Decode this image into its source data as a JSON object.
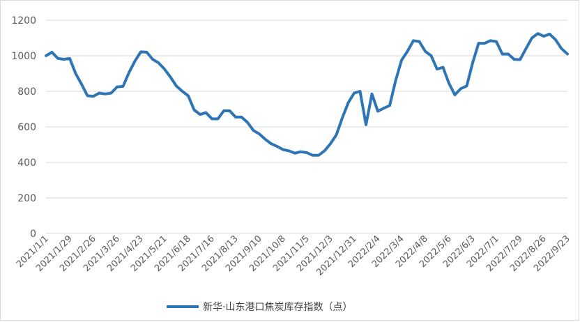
{
  "chart_data": {
    "type": "line",
    "title": "",
    "xlabel": "",
    "ylabel": "",
    "ylim": [
      0,
      1200
    ],
    "y_ticks": [
      0,
      200,
      400,
      600,
      800,
      1000,
      1200
    ],
    "grid": "horizontal",
    "legend_position": "bottom",
    "x_tick_labels": [
      "2021/1/1",
      "2021/1/29",
      "2021/2/26",
      "2021/3/26",
      "2021/4/23",
      "2021/5/21",
      "2021/6/18",
      "2021/7/16",
      "2021/8/13",
      "2021/9/10",
      "2021/10/8",
      "2021/11/5",
      "2021/12/3",
      "2021/12/31",
      "2022/2/4",
      "2022/3/4",
      "2022/4/8",
      "2022/5/6",
      "2022/6/3",
      "2022/7/1",
      "2022/7/29",
      "2022/8/26",
      "2022/9/23"
    ],
    "series": [
      {
        "name": "新华·山东港口焦炭库存指数（点）",
        "color": "#2e75b6",
        "values": [
          1000,
          1020,
          985,
          980,
          985,
          900,
          840,
          775,
          772,
          790,
          785,
          790,
          825,
          828,
          905,
          970,
          1022,
          1020,
          980,
          960,
          925,
          880,
          830,
          800,
          775,
          695,
          670,
          680,
          645,
          645,
          690,
          690,
          655,
          655,
          625,
          580,
          560,
          530,
          505,
          490,
          472,
          465,
          452,
          460,
          455,
          440,
          440,
          465,
          505,
          555,
          650,
          735,
          790,
          800,
          612,
          785,
          688,
          705,
          720,
          860,
          975,
          1025,
          1085,
          1080,
          1025,
          1000,
          925,
          935,
          845,
          780,
          815,
          830,
          960,
          1070,
          1070,
          1085,
          1080,
          1010,
          1010,
          980,
          978,
          1040,
          1100,
          1125,
          1110,
          1122,
          1090,
          1040,
          1010
        ]
      }
    ]
  }
}
